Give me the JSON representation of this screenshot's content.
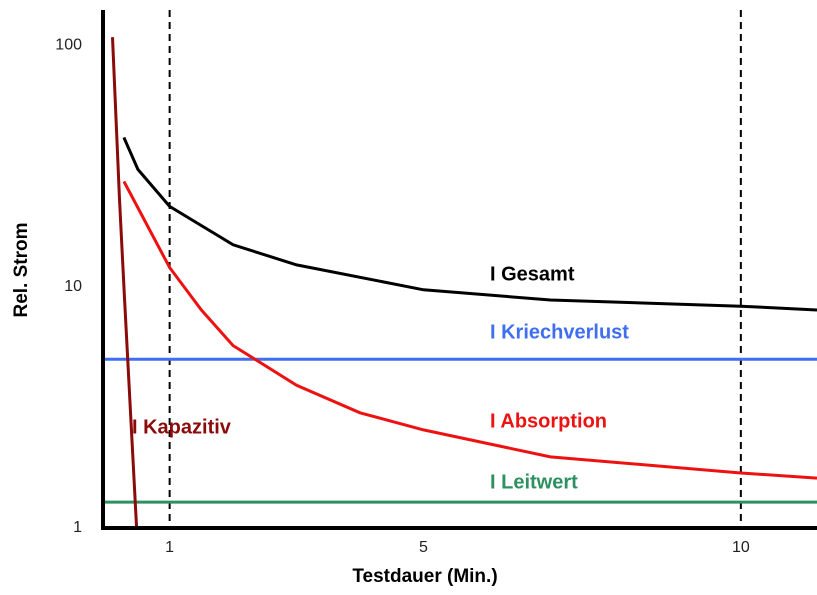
{
  "chart_data": {
    "type": "line",
    "x_label": "Testdauer (Min.)",
    "y_label": "Rel. Strom",
    "xlim": [
      -0.05,
      11.2
    ],
    "xticks": [
      1,
      5,
      10
    ],
    "ylim": [
      1,
      140
    ],
    "yticks": [
      1,
      10,
      100
    ],
    "log_y": true,
    "vlines": [
      1,
      10
    ],
    "series": [
      {
        "name": "I Gesamt",
        "color": "#000000",
        "x": [
          0.28,
          0.5,
          1,
          2,
          3,
          5,
          7,
          10,
          11.2
        ],
        "values": [
          41.5,
          30.6,
          21.5,
          14.9,
          12.3,
          9.7,
          8.8,
          8.3,
          8.0
        ]
      },
      {
        "name": "I Kriechverlust",
        "color": "#3f6ff0",
        "x": [
          -0.05,
          11.2
        ],
        "values": [
          5.0,
          5.0
        ]
      },
      {
        "name": "I Absorption",
        "color": "#ee1111",
        "x": [
          0.28,
          1,
          1.5,
          2,
          3,
          4,
          5,
          7,
          10,
          11.2
        ],
        "values": [
          27.3,
          12,
          8.0,
          5.7,
          3.9,
          3.0,
          2.55,
          1.97,
          1.69,
          1.61
        ]
      },
      {
        "name": "I Leitwert",
        "color": "#2e9060",
        "x": [
          -0.05,
          11.2
        ],
        "values": [
          1.28,
          1.28
        ]
      },
      {
        "name": "I Kapazitiv",
        "color": "#8b0a0a",
        "x": [
          0.1,
          0.21,
          0.29,
          0.48
        ],
        "values": [
          108,
          23,
          8.8,
          1
        ]
      }
    ]
  }
}
